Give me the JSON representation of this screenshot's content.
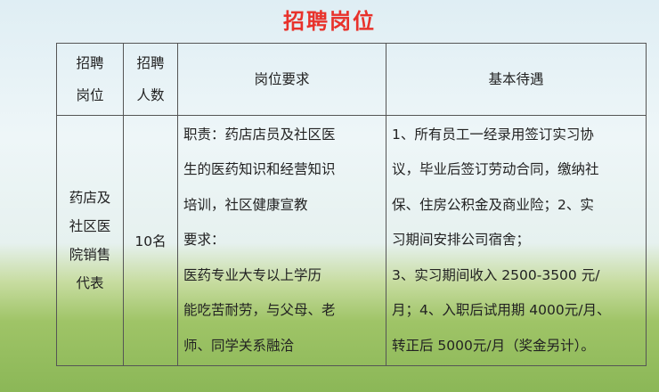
{
  "title": "招聘岗位",
  "headers": [
    "招聘\n岗位",
    "招聘\n人数",
    "岗位要求",
    "基本待遇"
  ],
  "header_lines": {
    "c1": [
      "招聘",
      "岗位"
    ],
    "c2": [
      "招聘",
      "人数"
    ],
    "c3": "岗位要求",
    "c4": "基本待遇"
  },
  "row": {
    "position": [
      "药店及",
      "社区医",
      "院销售",
      "代表"
    ],
    "count": "10名",
    "requirements": [
      "职责：药店店员及社区医",
      "生的医药知识和经营知识",
      "培训，社区健康宣教",
      "要求：",
      "医药专业大专以上学历",
      "能吃苦耐劳，与父母、老",
      "师、同学关系融洽"
    ],
    "benefits": [
      "1、所有员工一经录用签订实习协",
      "议，毕业后签订劳动合同，缴纳社",
      "保、住房公积金及商业险；2、实",
      "习期间安排公司宿舍；",
      "3、实习期间收入 2500-3500 元/",
      "月；4、入职后试用期 4000元/月、",
      "转正后 5000元/月（奖金另计）。"
    ]
  },
  "colors": {
    "title": "#e8322b",
    "border": "#555555"
  }
}
